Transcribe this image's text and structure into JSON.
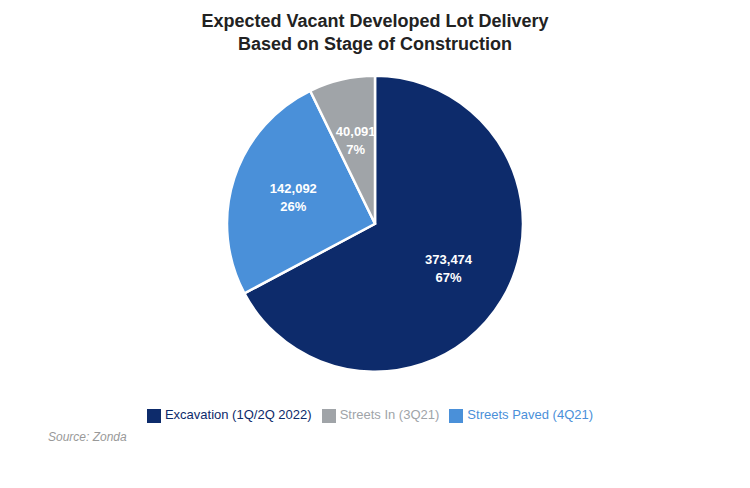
{
  "chart_data": {
    "type": "pie",
    "title": "Expected Vacant Developed Lot Delivery\nBased on Stage of Construction",
    "categories": [
      "Excavation (1Q/2Q 2022)",
      "Streets Paved (4Q21)",
      "Streets In (3Q21)"
    ],
    "values": [
      373474,
      142092,
      40091
    ],
    "value_labels": [
      "373,474\n67%",
      "142,092\n26%",
      "40,091\n7%"
    ],
    "data_labels": true,
    "colors": [
      "#0d2b6b",
      "#4a90d9",
      "#a0a4a8"
    ],
    "legend": "bottom",
    "annotations": [
      "Source: Zonda"
    ]
  }
}
